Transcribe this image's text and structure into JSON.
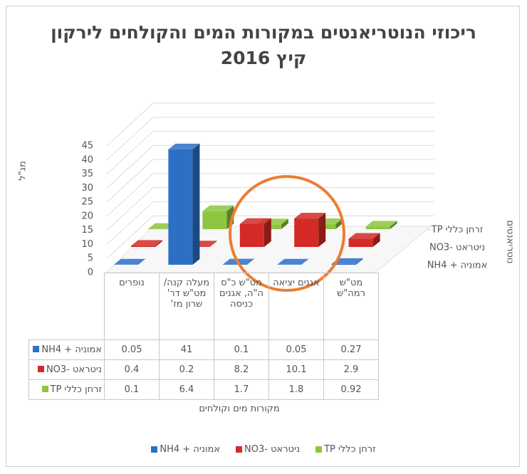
{
  "chart_data": {
    "type": "bar3d",
    "title": "ריכוזי הנוטריאנטים במקורות המים והקולחים לירקון קיץ 2016",
    "y_label": "מג\"ל",
    "x_label": "מקורות מים וקולחים",
    "z_label": "נוטריאנטים",
    "categories": [
      "נופרים",
      "מעלה קנה/ מט\"ש דר' שרון מז'",
      "מט\"ש כ\"ס ה\"ה, אגנים כניסה",
      "אגנים יציאה",
      "מט\"ש רמה\"ש"
    ],
    "series": [
      {
        "name": "NH4 + אמוניה",
        "color": "#2e6fc6",
        "values": [
          0.05,
          41,
          0.1,
          0.05,
          0.27
        ]
      },
      {
        "name": "NO3- ניטראט",
        "color": "#d42a26",
        "values": [
          0.4,
          0.2,
          8.2,
          10.1,
          2.9
        ]
      },
      {
        "name": "TP זרחן כללי",
        "color": "#8cc63e",
        "values": [
          0.1,
          6.4,
          1.7,
          1.8,
          0.92
        ]
      }
    ],
    "ylim": [
      0,
      45
    ],
    "yticks": [
      0,
      5,
      10,
      15,
      20,
      25,
      30,
      35,
      40,
      45
    ],
    "grid": true
  }
}
